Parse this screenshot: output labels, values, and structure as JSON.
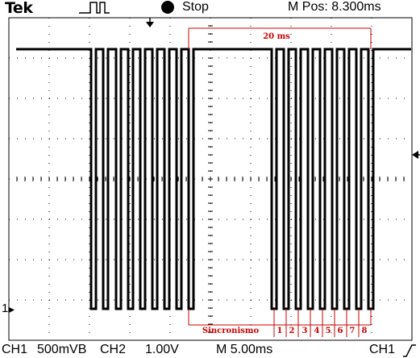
{
  "header": {
    "brand": "Tek",
    "trigger_icon": "pulse-trigger-icon",
    "run_state": "Stop",
    "position_label": "M Pos: 8.300ms"
  },
  "footer": {
    "ch1_label": "CH1",
    "ch1_scale": "500mVB",
    "ch2_label": "CH2",
    "ch2_scale": "1.00V",
    "timebase": "M 5.00ms",
    "trigger_source": "CH1",
    "trigger_slope_icon": "rising-edge-icon"
  },
  "channel_marker": "1",
  "annotations": {
    "frame_duration": "20 ms",
    "sync_label": "Sincronismo",
    "channel_numbers": [
      "1",
      "2",
      "3",
      "4",
      "5",
      "6",
      "7",
      "8"
    ]
  },
  "colors": {
    "trace": "#000000",
    "annotation": "#cc0000",
    "graticule": "#000000"
  }
}
